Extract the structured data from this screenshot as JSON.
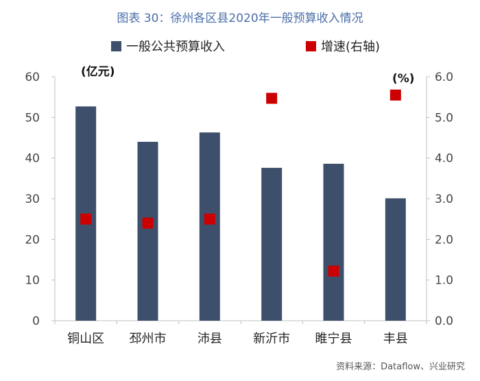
{
  "header": {
    "title": "图表 30：徐州各区县2020年一般预算收入情况"
  },
  "footer": {
    "source": "资料来源：Dataflow、兴业研究"
  },
  "chart_data": {
    "type": "bar",
    "title": "图表 30：徐州各区县2020年一般预算收入情况",
    "categories": [
      "铜山区",
      "邳州市",
      "沛县",
      "新沂市",
      "睢宁县",
      "丰县"
    ],
    "series": [
      {
        "name": "一般公共预算收入",
        "type": "bar",
        "axis": "left",
        "color": "#3e4f6b",
        "values": [
          52.7,
          44.0,
          46.3,
          37.6,
          38.6,
          30.1
        ]
      },
      {
        "name": "增速(右轴)",
        "type": "scatter",
        "axis": "right",
        "color": "#cc0000",
        "values": [
          2.5,
          2.4,
          2.5,
          5.47,
          1.22,
          5.55
        ]
      }
    ],
    "left_axis": {
      "label": "(亿元)",
      "ylim": [
        0,
        60
      ],
      "ticks": [
        "0",
        "10",
        "20",
        "30",
        "40",
        "50",
        "60"
      ]
    },
    "right_axis": {
      "label": "(%)",
      "ylim": [
        0,
        6
      ],
      "ticks": [
        "0.0",
        "1.0",
        "2.0",
        "3.0",
        "4.0",
        "5.0",
        "6.0"
      ]
    },
    "grid": false,
    "legend_position": "top"
  }
}
